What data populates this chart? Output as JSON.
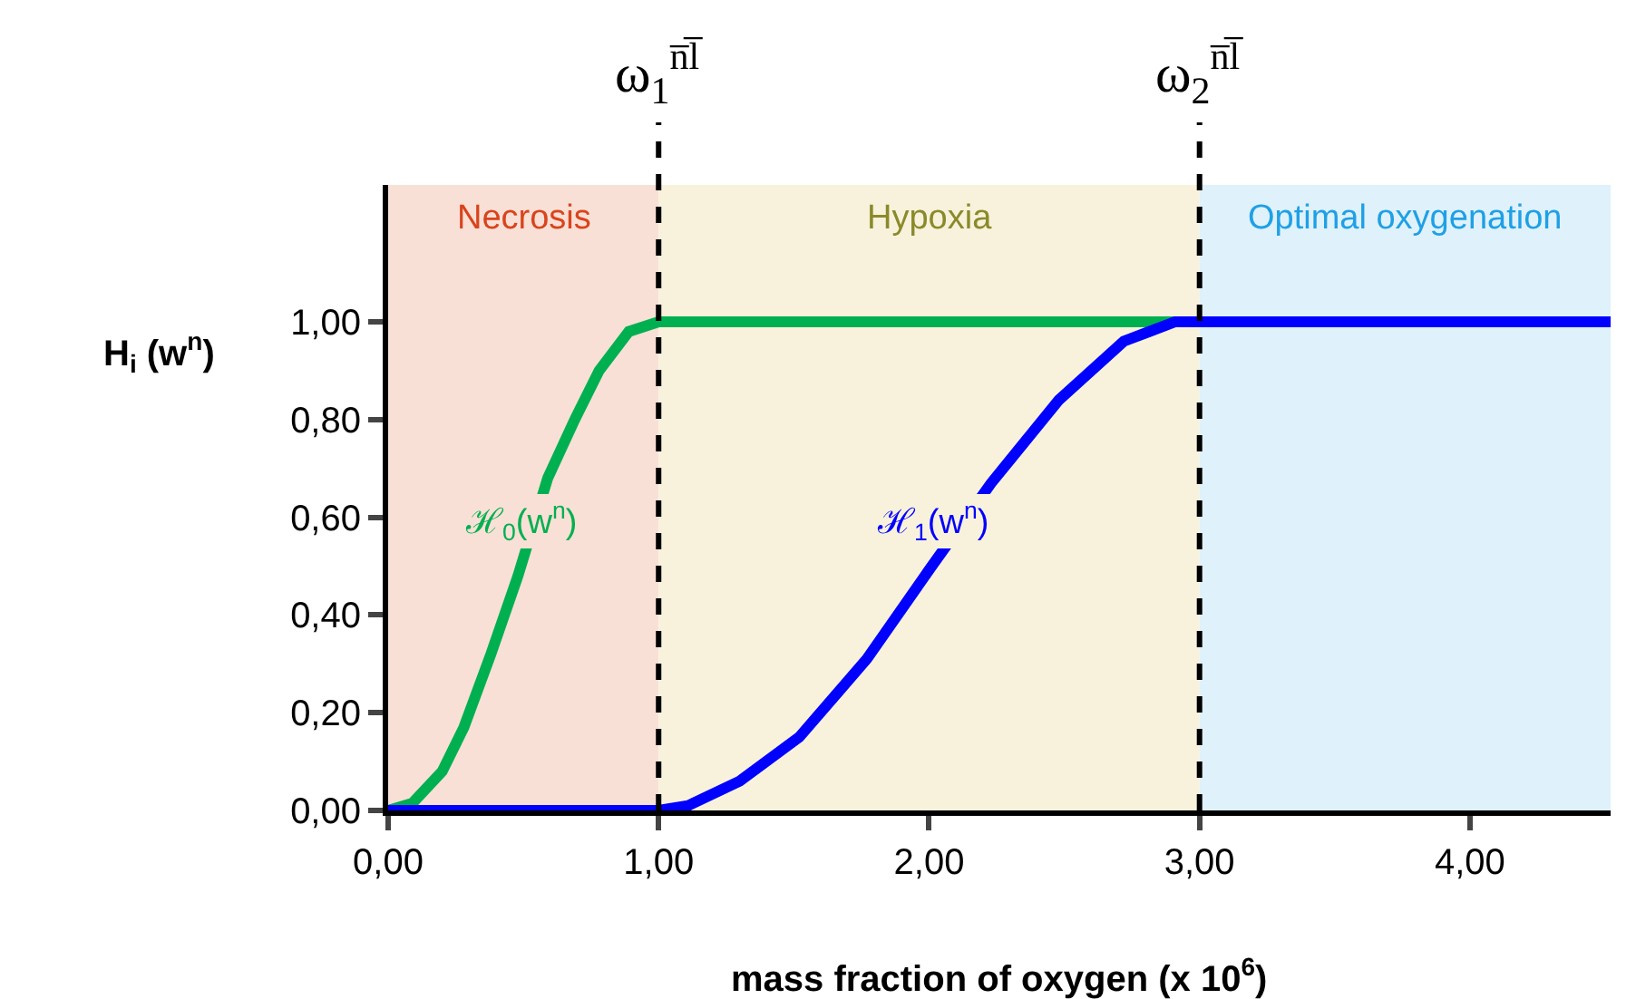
{
  "chart_data": {
    "type": "line",
    "xlabel": "mass fraction of oxygen (x 10$^{6}$)",
    "ylabel": "H$_{i}$ (w$^{n}$)",
    "xlim": [
      0,
      4.52
    ],
    "ylim": [
      0,
      1.28
    ],
    "xticks": [
      {
        "value": 0,
        "label": "0,00"
      },
      {
        "value": 1,
        "label": "1,00"
      },
      {
        "value": 2,
        "label": "2,00"
      },
      {
        "value": 3,
        "label": "3,00"
      },
      {
        "value": 4,
        "label": "4,00"
      }
    ],
    "yticks": [
      {
        "value": 0,
        "label": "0,00"
      },
      {
        "value": 0.2,
        "label": "0,20"
      },
      {
        "value": 0.4,
        "label": "0,40"
      },
      {
        "value": 0.6,
        "label": "0,60"
      },
      {
        "value": 0.8,
        "label": "0,80"
      },
      {
        "value": 1,
        "label": "1,00"
      }
    ],
    "series": [
      {
        "name": "ℋ$_{0}$(w$^{n}$)",
        "color": "#00b050",
        "x": [
          0,
          0.09,
          0.2,
          0.28,
          0.38,
          0.48,
          0.59,
          0.69,
          0.78,
          0.89,
          1.0,
          3.0
        ],
        "values": [
          0,
          0.015,
          0.08,
          0.17,
          0.32,
          0.48,
          0.68,
          0.8,
          0.9,
          0.98,
          1.0,
          1.0
        ]
      },
      {
        "name": "ℋ$_{1}$(w$^{n}$)",
        "color": "#0000ff",
        "x": [
          0,
          1.0,
          1.11,
          1.3,
          1.52,
          1.77,
          2.01,
          2.23,
          2.48,
          2.72,
          2.91,
          3.0,
          4.52
        ],
        "values": [
          0,
          0,
          0.01,
          0.06,
          0.15,
          0.31,
          0.5,
          0.67,
          0.84,
          0.96,
          1.0,
          1.0,
          1.0
        ]
      }
    ],
    "bands": [
      {
        "axis": "x",
        "from": 0,
        "to": 1,
        "label": "Necrosis",
        "color": "#f9e0d6"
      },
      {
        "axis": "x",
        "from": 1,
        "to": 3,
        "label": "Hypoxia",
        "color": "#f8f2dc"
      },
      {
        "axis": "x",
        "from": 3,
        "to": 4.52,
        "label": "Optimal oxygenation",
        "color": "#dff1fa"
      }
    ],
    "ref_lines": [
      {
        "axis": "x",
        "value": 1,
        "label": "ω$_{1}$$^{n̅l̅}$",
        "color": "#000000",
        "line_style": "dashed"
      },
      {
        "axis": "x",
        "value": 3,
        "label": "ω$_{2}$$^{n̅l̅}$",
        "color": "#000000",
        "line_style": "dashed"
      }
    ],
    "grid": false,
    "legend": false,
    "line_style": "solid",
    "marker": "none"
  }
}
